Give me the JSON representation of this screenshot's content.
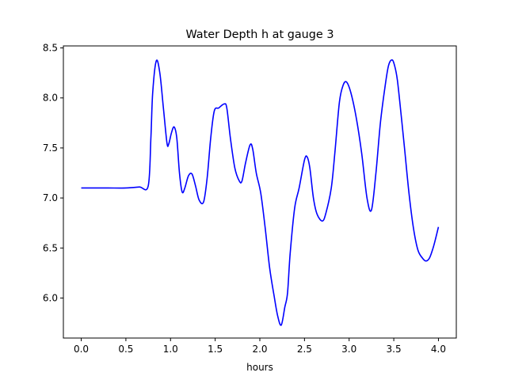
{
  "chart_data": {
    "type": "line",
    "title": "Water Depth h at gauge 3",
    "xlabel": "hours",
    "ylabel": "",
    "xlim": [
      -0.2,
      4.2
    ],
    "ylim": [
      5.6,
      8.52
    ],
    "grid": false,
    "legend": "none",
    "x_ticks": [
      0.0,
      0.5,
      1.0,
      1.5,
      2.0,
      2.5,
      3.0,
      3.5,
      4.0
    ],
    "x_tick_labels": [
      "0.0",
      "0.5",
      "1.0",
      "1.5",
      "2.0",
      "2.5",
      "3.0",
      "3.5",
      "4.0"
    ],
    "y_ticks": [
      6.0,
      6.5,
      7.0,
      7.5,
      8.0,
      8.5
    ],
    "y_tick_labels": [
      "6.0",
      "6.5",
      "7.0",
      "7.5",
      "8.0",
      "8.5"
    ],
    "series": [
      {
        "name": "",
        "color": "#0000ff",
        "points": [
          [
            0.0,
            7.1
          ],
          [
            0.1,
            7.1
          ],
          [
            0.3,
            7.1
          ],
          [
            0.5,
            7.1
          ],
          [
            0.65,
            7.11
          ],
          [
            0.75,
            7.12
          ],
          [
            0.78,
            7.6
          ],
          [
            0.8,
            8.05
          ],
          [
            0.84,
            8.37
          ],
          [
            0.88,
            8.25
          ],
          [
            0.92,
            7.9
          ],
          [
            0.96,
            7.55
          ],
          [
            0.98,
            7.54
          ],
          [
            1.01,
            7.65
          ],
          [
            1.04,
            7.71
          ],
          [
            1.07,
            7.6
          ],
          [
            1.1,
            7.25
          ],
          [
            1.13,
            7.06
          ],
          [
            1.16,
            7.1
          ],
          [
            1.2,
            7.22
          ],
          [
            1.24,
            7.24
          ],
          [
            1.28,
            7.12
          ],
          [
            1.32,
            6.98
          ],
          [
            1.37,
            6.96
          ],
          [
            1.41,
            7.2
          ],
          [
            1.45,
            7.6
          ],
          [
            1.49,
            7.87
          ],
          [
            1.54,
            7.9
          ],
          [
            1.6,
            7.94
          ],
          [
            1.63,
            7.9
          ],
          [
            1.67,
            7.6
          ],
          [
            1.72,
            7.3
          ],
          [
            1.77,
            7.17
          ],
          [
            1.8,
            7.17
          ],
          [
            1.84,
            7.35
          ],
          [
            1.89,
            7.53
          ],
          [
            1.92,
            7.49
          ],
          [
            1.96,
            7.25
          ],
          [
            2.01,
            7.05
          ],
          [
            2.06,
            6.7
          ],
          [
            2.11,
            6.3
          ],
          [
            2.16,
            6.02
          ],
          [
            2.2,
            5.82
          ],
          [
            2.24,
            5.73
          ],
          [
            2.28,
            5.91
          ],
          [
            2.31,
            6.05
          ],
          [
            2.34,
            6.45
          ],
          [
            2.39,
            6.9
          ],
          [
            2.44,
            7.1
          ],
          [
            2.5,
            7.38
          ],
          [
            2.53,
            7.41
          ],
          [
            2.56,
            7.3
          ],
          [
            2.6,
            7.0
          ],
          [
            2.64,
            6.84
          ],
          [
            2.7,
            6.77
          ],
          [
            2.74,
            6.85
          ],
          [
            2.8,
            7.1
          ],
          [
            2.84,
            7.45
          ],
          [
            2.89,
            7.95
          ],
          [
            2.93,
            8.12
          ],
          [
            2.97,
            8.16
          ],
          [
            3.02,
            8.05
          ],
          [
            3.08,
            7.8
          ],
          [
            3.14,
            7.45
          ],
          [
            3.2,
            7.0
          ],
          [
            3.25,
            6.88
          ],
          [
            3.3,
            7.25
          ],
          [
            3.35,
            7.75
          ],
          [
            3.4,
            8.1
          ],
          [
            3.44,
            8.32
          ],
          [
            3.48,
            8.38
          ],
          [
            3.51,
            8.32
          ],
          [
            3.54,
            8.18
          ],
          [
            3.58,
            7.85
          ],
          [
            3.62,
            7.5
          ],
          [
            3.67,
            7.05
          ],
          [
            3.72,
            6.7
          ],
          [
            3.77,
            6.48
          ],
          [
            3.82,
            6.4
          ],
          [
            3.86,
            6.37
          ],
          [
            3.9,
            6.4
          ],
          [
            3.94,
            6.5
          ],
          [
            3.97,
            6.6
          ],
          [
            4.0,
            6.71
          ]
        ]
      }
    ]
  }
}
